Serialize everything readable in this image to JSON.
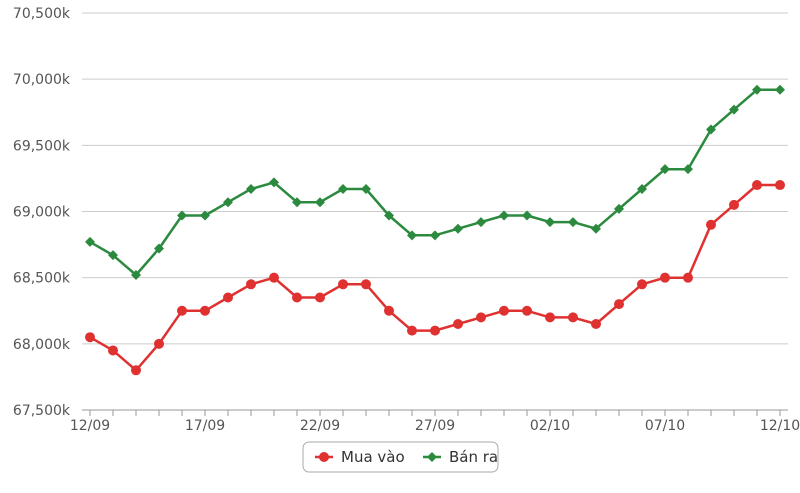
{
  "chart_data": {
    "type": "line",
    "x": [
      "12/09",
      "13/09",
      "14/09",
      "15/09",
      "16/09",
      "17/09",
      "18/09",
      "19/09",
      "20/09",
      "21/09",
      "22/09",
      "23/09",
      "24/09",
      "25/09",
      "26/09",
      "27/09",
      "28/09",
      "29/09",
      "30/09",
      "01/10",
      "02/10",
      "03/10",
      "04/10",
      "05/10",
      "06/10",
      "07/10",
      "08/10",
      "09/10",
      "10/10",
      "11/10",
      "12/10"
    ],
    "x_tick_labels": [
      "12/09",
      "17/09",
      "22/09",
      "27/09",
      "02/10",
      "07/10",
      "12/10"
    ],
    "y_tick_labels": [
      "67,500k",
      "68,000k",
      "68,500k",
      "69,000k",
      "69,500k",
      "70,000k",
      "70,500k"
    ],
    "ylim": [
      67500,
      70500
    ],
    "y_ticks": [
      67500,
      68000,
      68500,
      69000,
      69500,
      70000,
      70500
    ],
    "grid": true,
    "legend_position": "bottom",
    "series": [
      {
        "name": "Mua vào",
        "color": "#e03131",
        "marker": "circle",
        "values": [
          68050,
          67950,
          67800,
          68000,
          68250,
          68250,
          68350,
          68450,
          68500,
          68350,
          68350,
          68450,
          68450,
          68250,
          68100,
          68100,
          68150,
          68200,
          68250,
          68250,
          68200,
          68200,
          68150,
          68300,
          68450,
          68500,
          68500,
          68900,
          69050,
          69200,
          69200
        ]
      },
      {
        "name": "Bán ra",
        "color": "#2b8a3e",
        "marker": "diamond",
        "values": [
          68770,
          68670,
          68520,
          68720,
          68970,
          68970,
          69070,
          69170,
          69220,
          69070,
          69070,
          69170,
          69170,
          68970,
          68820,
          68820,
          68870,
          68920,
          68970,
          68970,
          68920,
          68920,
          68870,
          69020,
          69170,
          69320,
          69320,
          69620,
          69770,
          69920,
          69920
        ]
      }
    ]
  }
}
